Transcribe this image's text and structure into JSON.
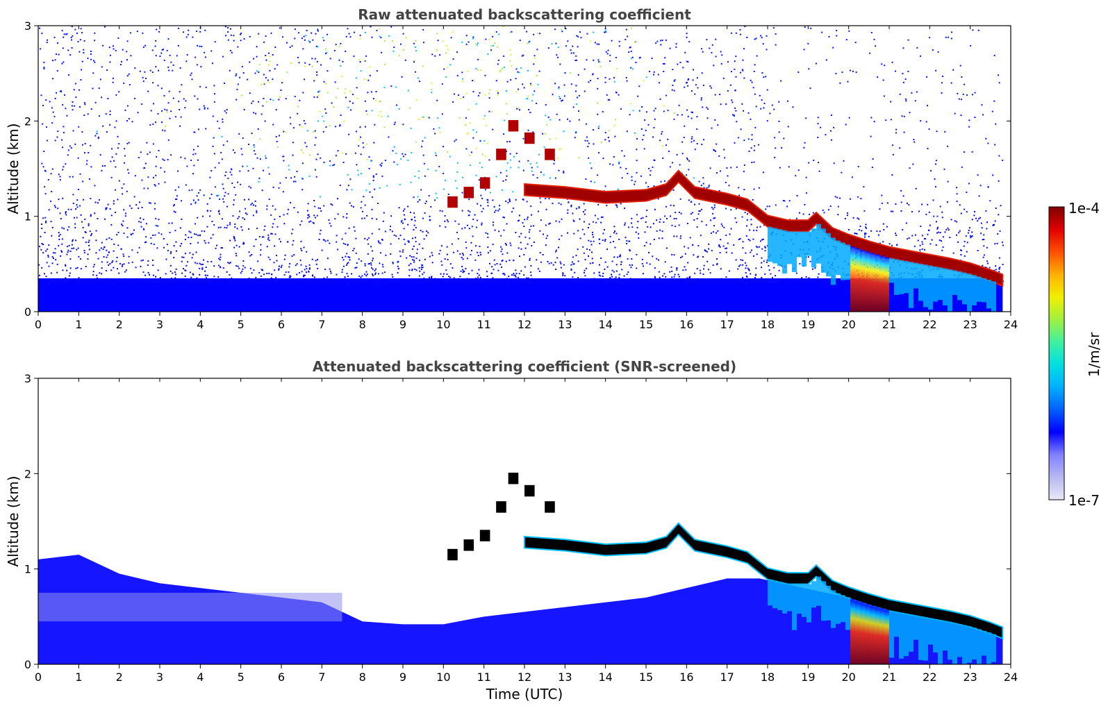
{
  "chart_data": [
    {
      "type": "heatmap",
      "title": "Raw attenuated backscattering coefficient",
      "xlabel": "",
      "ylabel": "Altitude (km)",
      "xlim": [
        0,
        24
      ],
      "ylim": [
        0,
        3
      ],
      "xticks": [
        "0",
        "1",
        "2",
        "3",
        "4",
        "5",
        "6",
        "7",
        "8",
        "9",
        "10",
        "11",
        "12",
        "13",
        "14",
        "15",
        "16",
        "17",
        "18",
        "19",
        "20",
        "21",
        "22",
        "23",
        "24"
      ],
      "yticks": [
        "0",
        "1",
        "2",
        "3"
      ],
      "cloud_layer_base_km": {
        "time_utc": [
          12.0,
          13.0,
          14.0,
          15.0,
          15.5,
          15.8,
          16.2,
          17.0,
          17.5,
          18.0,
          18.5,
          19.0,
          19.2,
          19.6,
          20.0,
          20.5,
          21.0,
          21.5,
          22.0,
          22.5,
          23.0,
          23.5,
          23.8
        ],
        "altitude_km": [
          1.28,
          1.25,
          1.2,
          1.22,
          1.28,
          1.42,
          1.25,
          1.18,
          1.12,
          0.95,
          0.9,
          0.9,
          0.98,
          0.82,
          0.75,
          0.68,
          0.62,
          0.58,
          0.54,
          0.5,
          0.45,
          0.38,
          0.33
        ]
      }
    },
    {
      "type": "heatmap",
      "title": "Attenuated backscattering coefficient (SNR-screened)",
      "xlabel": "Time (UTC)",
      "ylabel": "Altitude (km)",
      "xlim": [
        0,
        24
      ],
      "ylim": [
        0,
        3
      ],
      "xticks": [
        "0",
        "1",
        "2",
        "3",
        "4",
        "5",
        "6",
        "7",
        "8",
        "9",
        "10",
        "11",
        "12",
        "13",
        "14",
        "15",
        "16",
        "17",
        "18",
        "19",
        "20",
        "21",
        "22",
        "23",
        "24"
      ],
      "yticks": [
        "0",
        "1",
        "2",
        "3"
      ],
      "boundary_layer_top_km": {
        "time_utc": [
          0,
          1,
          2,
          3,
          4,
          5,
          6,
          7,
          8,
          9,
          10,
          11,
          12,
          13,
          14,
          15,
          16,
          17
        ],
        "altitude_km": [
          1.1,
          1.15,
          0.95,
          0.85,
          0.8,
          0.75,
          0.7,
          0.65,
          0.45,
          0.42,
          0.42,
          0.5,
          0.55,
          0.6,
          0.65,
          0.7,
          0.8,
          0.9
        ]
      }
    }
  ],
  "colorbar": {
    "max_label": "1e-4",
    "min_label": "1e-7",
    "unit_label": "1/m/sr",
    "colors": [
      "#e8e8f8",
      "#b8b8f0",
      "#8080ff",
      "#0000ff",
      "#0060ff",
      "#00b0ff",
      "#00e0e0",
      "#40f0a0",
      "#a0f040",
      "#f0f000",
      "#ffb000",
      "#ff5000",
      "#e00000",
      "#800000"
    ]
  }
}
